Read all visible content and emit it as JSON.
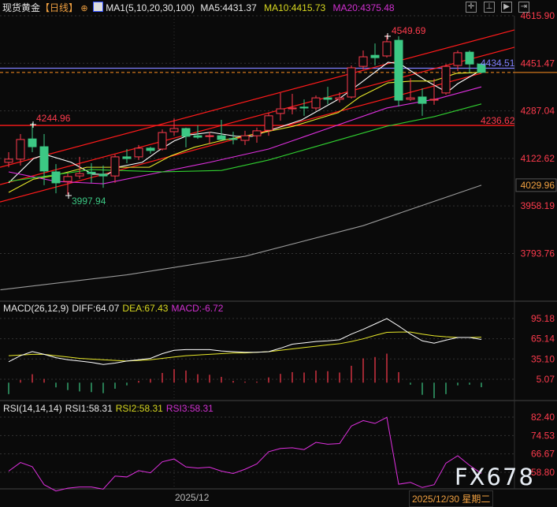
{
  "header": {
    "symbol": "现货黄金",
    "period": "【日线】",
    "ma_label": "MA1(5,10,20,30,100)",
    "ma5": "MA5:4431.37",
    "ma10": "MA10:4415.73",
    "ma20": "MA20:4375.48",
    "toolbar_icons": [
      "crosshair-icon",
      "bar-range-icon",
      "play-icon",
      "forward-icon"
    ]
  },
  "macd_header": {
    "label": "MACD(26,12,9)",
    "diff": "DIFF:64.07",
    "dea": "DEA:67.43",
    "macd": "MACD:-6.72"
  },
  "rsi_header": {
    "label": "RSI(14,14,14)",
    "rsi1": "RSI1:58.31",
    "rsi2": "RSI2:58.31",
    "rsi3": "RSI3:58.31"
  },
  "time_axis": {
    "month": "2025/12",
    "cursor_date": "2025/12/30 星期二"
  },
  "watermark": "FX678",
  "colors": {
    "up": "#ff3b4d",
    "down": "#3cc884",
    "ma5": "#ffffff",
    "ma10": "#e8e82a",
    "ma20": "#e030e0",
    "ma30": "#30d030",
    "ma100": "#9a9a9a",
    "channel": "#ff1a1a",
    "last_price": "#8080ff",
    "dashed": "#ff9020"
  },
  "chart_data": [
    {
      "type": "candlestick",
      "title": "现货黄金 日线",
      "y_ticks": [
        "4615.90",
        "4451.47",
        "4287.04",
        "4122.62",
        "3958.19",
        "3793.76"
      ],
      "ylim": [
        3660,
        4615.9
      ],
      "grid": true,
      "ohlc": [
        [
          4109,
          4144,
          4092,
          4120
        ],
        [
          4120,
          4207,
          4098,
          4188
        ],
        [
          4190,
          4244.96,
          4144,
          4163
        ],
        [
          4163,
          4207,
          4030,
          4079
        ],
        [
          4076,
          4103,
          4002,
          4038
        ],
        [
          4043,
          4071,
          3997.94,
          4060
        ],
        [
          4062,
          4128,
          4052,
          4070
        ],
        [
          4075,
          4106,
          4038,
          4070
        ],
        [
          4068,
          4098,
          4021,
          4062
        ],
        [
          4062,
          4136,
          4038,
          4128
        ],
        [
          4128,
          4155,
          4106,
          4122
        ],
        [
          4128,
          4169,
          4117,
          4158
        ],
        [
          4158,
          4163,
          4139,
          4150
        ],
        [
          4155,
          4223,
          4150,
          4212
        ],
        [
          4215,
          4261,
          4201,
          4226
        ],
        [
          4226,
          4229,
          4161,
          4199
        ],
        [
          4201,
          4237,
          4190,
          4196
        ],
        [
          4199,
          4215,
          4171,
          4201
        ],
        [
          4201,
          4256,
          4188,
          4188
        ],
        [
          4191,
          4215,
          4171,
          4188
        ],
        [
          4185,
          4218,
          4169,
          4201
        ],
        [
          4201,
          4229,
          4177,
          4218
        ],
        [
          4220,
          4280,
          4201,
          4270
        ],
        [
          4278,
          4349,
          4253,
          4294
        ],
        [
          4294,
          4346,
          4275,
          4297
        ],
        [
          4300,
          4327,
          4270,
          4297
        ],
        [
          4297,
          4340,
          4289,
          4332
        ],
        [
          4332,
          4370,
          4310,
          4327
        ],
        [
          4327,
          4351,
          4316,
          4332
        ],
        [
          4335,
          4444,
          4330,
          4436
        ],
        [
          4441,
          4496,
          4430,
          4474
        ],
        [
          4479,
          4520,
          4444,
          4471
        ],
        [
          4477,
          4549.69,
          4471,
          4526
        ],
        [
          4531,
          4545,
          4302,
          4324
        ],
        [
          4327,
          4400,
          4321,
          4332
        ],
        [
          4335,
          4365,
          4270,
          4313
        ],
        [
          4324,
          4398,
          4308,
          4327
        ],
        [
          4349,
          4449,
          4343,
          4441
        ],
        [
          4444,
          4496,
          4425,
          4488
        ],
        [
          4490,
          4496,
          4419,
          4449
        ],
        [
          4449,
          4452,
          4417,
          4420
        ]
      ],
      "moving_averages": [
        {
          "name": "MA5",
          "points": [
            [
              0,
              4038
            ],
            [
              2.1,
              4122
            ],
            [
              3.1,
              4136
            ],
            [
              5.3,
              4109
            ],
            [
              7.1,
              4068
            ],
            [
              8.4,
              4068
            ],
            [
              9.3,
              4093
            ],
            [
              11.3,
              4109
            ],
            [
              12.6,
              4147
            ],
            [
              14,
              4183
            ],
            [
              15.3,
              4204
            ],
            [
              17.1,
              4213
            ],
            [
              19.3,
              4199
            ],
            [
              20.6,
              4199
            ],
            [
              22,
              4218
            ],
            [
              24.8,
              4256
            ],
            [
              27.9,
              4327
            ],
            [
              29.7,
              4381
            ],
            [
              32.1,
              4455
            ],
            [
              33.1,
              4450
            ],
            [
              35.3,
              4392
            ],
            [
              37.1,
              4351
            ],
            [
              38,
              4381
            ],
            [
              40,
              4428
            ]
          ]
        },
        {
          "name": "MA10",
          "points": [
            [
              0,
              4005
            ],
            [
              2.1,
              4051
            ],
            [
              3.7,
              4062
            ],
            [
              6.6,
              4092
            ],
            [
              8.8,
              4092
            ],
            [
              11.9,
              4092
            ],
            [
              13.7,
              4131
            ],
            [
              15.7,
              4161
            ],
            [
              18.1,
              4185
            ],
            [
              21.5,
              4212
            ],
            [
              24.1,
              4234
            ],
            [
              27.9,
              4281
            ],
            [
              29.7,
              4335
            ],
            [
              32.1,
              4384
            ],
            [
              34.1,
              4390
            ],
            [
              35.9,
              4390
            ],
            [
              37.9,
              4417
            ],
            [
              40,
              4420
            ]
          ]
        },
        {
          "name": "MA20",
          "points": [
            [
              0,
              4076
            ],
            [
              4,
              4043
            ],
            [
              8,
              4035
            ],
            [
              13,
              4076
            ],
            [
              17,
              4109
            ],
            [
              22,
              4155
            ],
            [
              27,
              4226
            ],
            [
              32,
              4297
            ],
            [
              36.4,
              4330
            ],
            [
              40,
              4370
            ]
          ]
        },
        {
          "name": "MA30",
          "points": [
            [
              0,
              4043
            ],
            [
              7,
              4084
            ],
            [
              13,
              4076
            ],
            [
              18,
              4081
            ],
            [
              22,
              4117
            ],
            [
              32,
              4234
            ],
            [
              36,
              4267
            ],
            [
              40,
              4311
            ]
          ]
        },
        {
          "name": "MA100",
          "points": [
            [
              -0.7,
              3668
            ],
            [
              10,
              3720
            ],
            [
              20,
              3784
            ],
            [
              30,
              3890
            ],
            [
              40,
              4030
            ]
          ]
        }
      ],
      "channel_lines": [
        {
          "from": [
            -0.73,
            4092
          ],
          "to": [
            42.8,
            4567
          ]
        },
        {
          "from": [
            -0.73,
            4032
          ],
          "to": [
            42.8,
            4507
          ]
        },
        {
          "from": [
            -0.73,
            3972
          ],
          "to": [
            40,
            4417
          ]
        }
      ],
      "horizontal_lines": {
        "support": 4236.62,
        "last_price": 4434.51,
        "dashed": 4420
      },
      "annotations": {
        "high_left": "4244.96",
        "low_left": "3997.94",
        "high": "4549.69",
        "last_price": "4434.51",
        "support": "4236.62",
        "ma100_value": "4029.96"
      }
    },
    {
      "type": "macd",
      "y_ticks": [
        "95.18",
        "65.14",
        "35.10",
        "5.07"
      ],
      "diff": [
        31,
        40,
        46,
        42,
        37,
        34,
        32,
        30,
        27,
        29,
        32,
        34,
        36,
        43,
        48,
        49,
        49,
        49,
        47,
        46,
        45,
        45,
        46,
        51,
        57,
        59,
        61,
        62,
        63.6,
        72,
        79,
        87,
        95,
        84,
        72,
        62,
        58.5,
        63,
        67,
        67,
        64.07
      ],
      "dea": [
        40,
        41,
        42,
        42,
        40,
        38,
        36,
        35,
        34,
        33,
        32,
        33,
        34,
        36,
        38,
        40,
        41,
        42,
        43,
        44,
        44,
        45,
        46,
        48,
        50,
        52,
        54,
        56,
        57.7,
        61,
        65,
        70,
        74.5,
        75,
        75,
        72,
        69.4,
        68,
        67,
        67,
        67.43
      ],
      "macd": [
        -17,
        4,
        12.5,
        5.5,
        -7,
        -11,
        -13,
        -14,
        -15.6,
        -9,
        -4,
        2.7,
        5.5,
        14.4,
        20,
        18,
        12.5,
        11.7,
        8.6,
        2.7,
        1.6,
        1.6,
        7.8,
        13,
        15.6,
        15,
        18,
        17,
        15,
        25,
        36,
        38,
        43,
        15.6,
        -3,
        -18,
        -23,
        -17,
        -4,
        -3,
        -6.72
      ]
    },
    {
      "type": "line",
      "name": "RSI",
      "y_ticks": [
        "82.40",
        "74.53",
        "66.67",
        "58.80"
      ],
      "values": [
        59.3,
        63,
        61.2,
        53.5,
        50.8,
        52,
        52.5,
        52.5,
        51.6,
        57.2,
        56.8,
        59.5,
        58.6,
        63.3,
        64.5,
        61.1,
        60.6,
        61,
        59.3,
        58.3,
        60.1,
        62.4,
        67.6,
        69,
        69.3,
        68.5,
        71.6,
        70.8,
        71.1,
        78.6,
        80.9,
        79.7,
        82.3,
        53.7,
        54.5,
        52.3,
        53.5,
        62.7,
        65.9,
        61.8,
        58.31
      ]
    }
  ]
}
